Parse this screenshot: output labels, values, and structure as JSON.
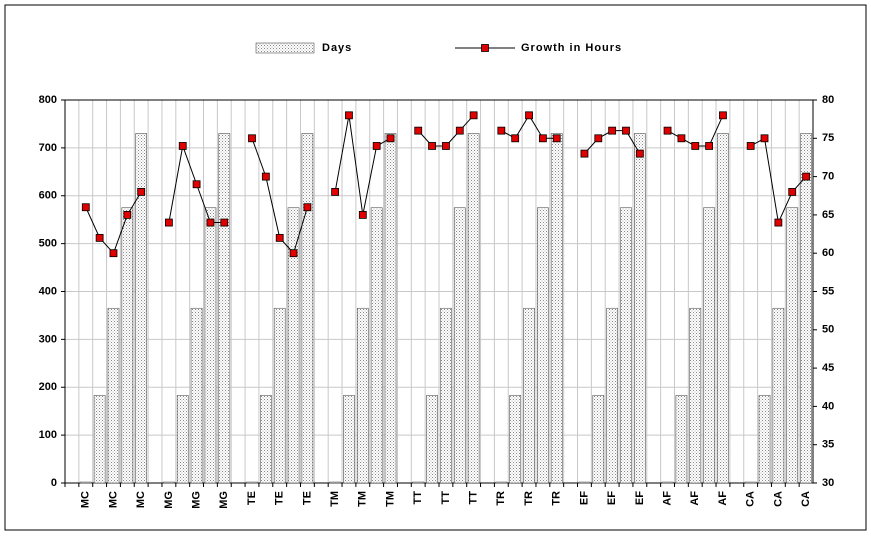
{
  "chart_data": {
    "type": "bar_line",
    "categories": [
      null,
      "MC",
      null,
      "MC",
      null,
      "MC",
      null,
      "MG",
      null,
      "MG",
      null,
      "MG",
      null,
      "TE",
      null,
      "TE",
      null,
      "TE",
      null,
      "TM",
      null,
      "TM",
      null,
      "TM",
      null,
      "TT",
      null,
      "TT",
      null,
      "TT",
      null,
      "TR",
      null,
      "TR",
      null,
      "TR",
      null,
      "EF",
      null,
      "EF",
      null,
      "EF",
      null,
      "AF",
      null,
      "AF",
      null,
      "AF",
      null,
      "CA",
      null,
      "CA",
      null,
      "CA"
    ],
    "series": [
      {
        "name": "Days",
        "type": "bar",
        "color": "#d4d4d4",
        "values": [
          null,
          2,
          183,
          365,
          575,
          730,
          null,
          2,
          183,
          365,
          575,
          730,
          null,
          2,
          183,
          365,
          575,
          730,
          null,
          2,
          183,
          365,
          575,
          730,
          null,
          2,
          183,
          365,
          575,
          730,
          null,
          2,
          183,
          365,
          575,
          730,
          null,
          2,
          183,
          365,
          575,
          730,
          null,
          2,
          183,
          365,
          575,
          730,
          null,
          2,
          183,
          365,
          575,
          730
        ]
      },
      {
        "name": "Growth in Hours",
        "type": "line",
        "axis": "y2",
        "color": "#000000",
        "marker_color": "#e00000",
        "values": [
          null,
          66,
          62,
          60,
          65,
          68,
          null,
          64,
          74,
          69,
          64,
          64,
          null,
          75,
          70,
          62,
          60,
          66,
          null,
          68,
          78,
          65,
          74,
          75,
          null,
          76,
          74,
          74,
          76,
          78,
          null,
          76,
          75,
          78,
          75,
          75,
          null,
          73,
          75,
          76,
          76,
          73,
          null,
          76,
          75,
          74,
          74,
          78,
          null,
          74,
          75,
          64,
          68,
          70
        ]
      }
    ],
    "ylim": [
      0,
      800
    ],
    "yticks": [
      0,
      100,
      200,
      300,
      400,
      500,
      600,
      700,
      800
    ],
    "y2lim": [
      30,
      80
    ],
    "y2ticks": [
      30,
      35,
      40,
      45,
      50,
      55,
      60,
      65,
      70,
      75,
      80
    ],
    "grid": true,
    "legend": "top"
  }
}
